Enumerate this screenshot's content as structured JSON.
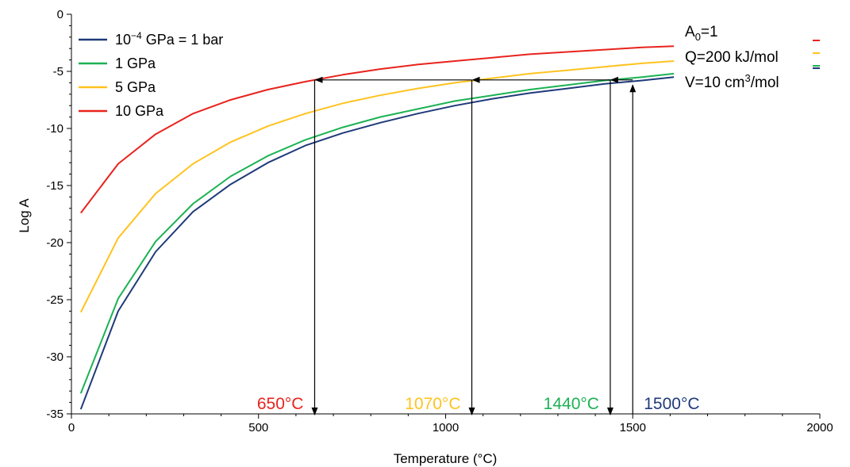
{
  "chart_data": {
    "type": "line",
    "xlabel": "Temperature (°C)",
    "ylabel": "Log A",
    "xlim": [
      0,
      2000
    ],
    "ylim": [
      -35,
      0
    ],
    "xticks": [
      0,
      500,
      1000,
      1500,
      2000
    ],
    "yticks": [
      0,
      -5,
      -10,
      -15,
      -20,
      -25,
      -30,
      -35
    ],
    "grid": false,
    "legend_position": "top-left",
    "x": [
      25,
      125,
      225,
      325,
      425,
      525,
      625,
      725,
      825,
      925,
      1025,
      1125,
      1225,
      1325,
      1425,
      1525,
      1610
    ],
    "series": [
      {
        "name_parts": [
          "10",
          "−4",
          " GPa = 1 bar"
        ],
        "color": "#1f3a7a",
        "values": [
          -34.6,
          -26.0,
          -20.8,
          -17.3,
          -14.9,
          -13.0,
          -11.5,
          -10.4,
          -9.5,
          -8.7,
          -8.0,
          -7.4,
          -6.9,
          -6.5,
          -6.1,
          -5.8,
          -5.5
        ]
      },
      {
        "name": "1 GPa",
        "color": "#1cb254",
        "values": [
          -33.2,
          -24.9,
          -19.9,
          -16.6,
          -14.2,
          -12.4,
          -11.0,
          -9.9,
          -9.0,
          -8.3,
          -7.6,
          -7.1,
          -6.6,
          -6.2,
          -5.8,
          -5.5,
          -5.2
        ]
      },
      {
        "name": "5 GPa",
        "color": "#ffc31f",
        "values": [
          -26.1,
          -19.6,
          -15.7,
          -13.1,
          -11.2,
          -9.8,
          -8.7,
          -7.8,
          -7.1,
          -6.5,
          -6.0,
          -5.6,
          -5.2,
          -4.9,
          -4.6,
          -4.3,
          -4.1
        ]
      },
      {
        "name": "10 GPa",
        "color": "#e8231d",
        "values": [
          -17.4,
          -13.1,
          -10.5,
          -8.7,
          -7.5,
          -6.6,
          -5.9,
          -5.3,
          -4.8,
          -4.4,
          -4.1,
          -3.8,
          -3.5,
          -3.3,
          -3.1,
          -2.9,
          -2.8
        ]
      }
    ],
    "parameters": {
      "a0_main": "A",
      "a0_sub": "0",
      "a0_rest": "=1",
      "q": "Q=200 kJ/mol",
      "v_main": "V=10 cm",
      "v_sup": "3",
      "v_rest": "/mol"
    },
    "arrows": {
      "up": {
        "x": 1500,
        "y_from": -35,
        "y_to": -6.2
      },
      "horizontal": {
        "y": -5.75,
        "x_from": 1500,
        "x_stops": [
          1440,
          1070,
          650
        ]
      },
      "down": [
        {
          "x": 1440,
          "y_from": -5.75,
          "y_to": -35
        },
        {
          "x": 1070,
          "y_from": -5.75,
          "y_to": -35
        },
        {
          "x": 650,
          "y_from": -5.75,
          "y_to": -35
        }
      ]
    },
    "temperature_labels": [
      {
        "text": "650°C",
        "x": 650,
        "color": "#e8231d"
      },
      {
        "text": "1070°C",
        "x": 1070,
        "color": "#ffc31f"
      },
      {
        "text": "1440°C",
        "x": 1440,
        "color": "#1cb254"
      },
      {
        "text": "1500°C",
        "x": 1500,
        "color": "#1f3a7a"
      }
    ]
  }
}
